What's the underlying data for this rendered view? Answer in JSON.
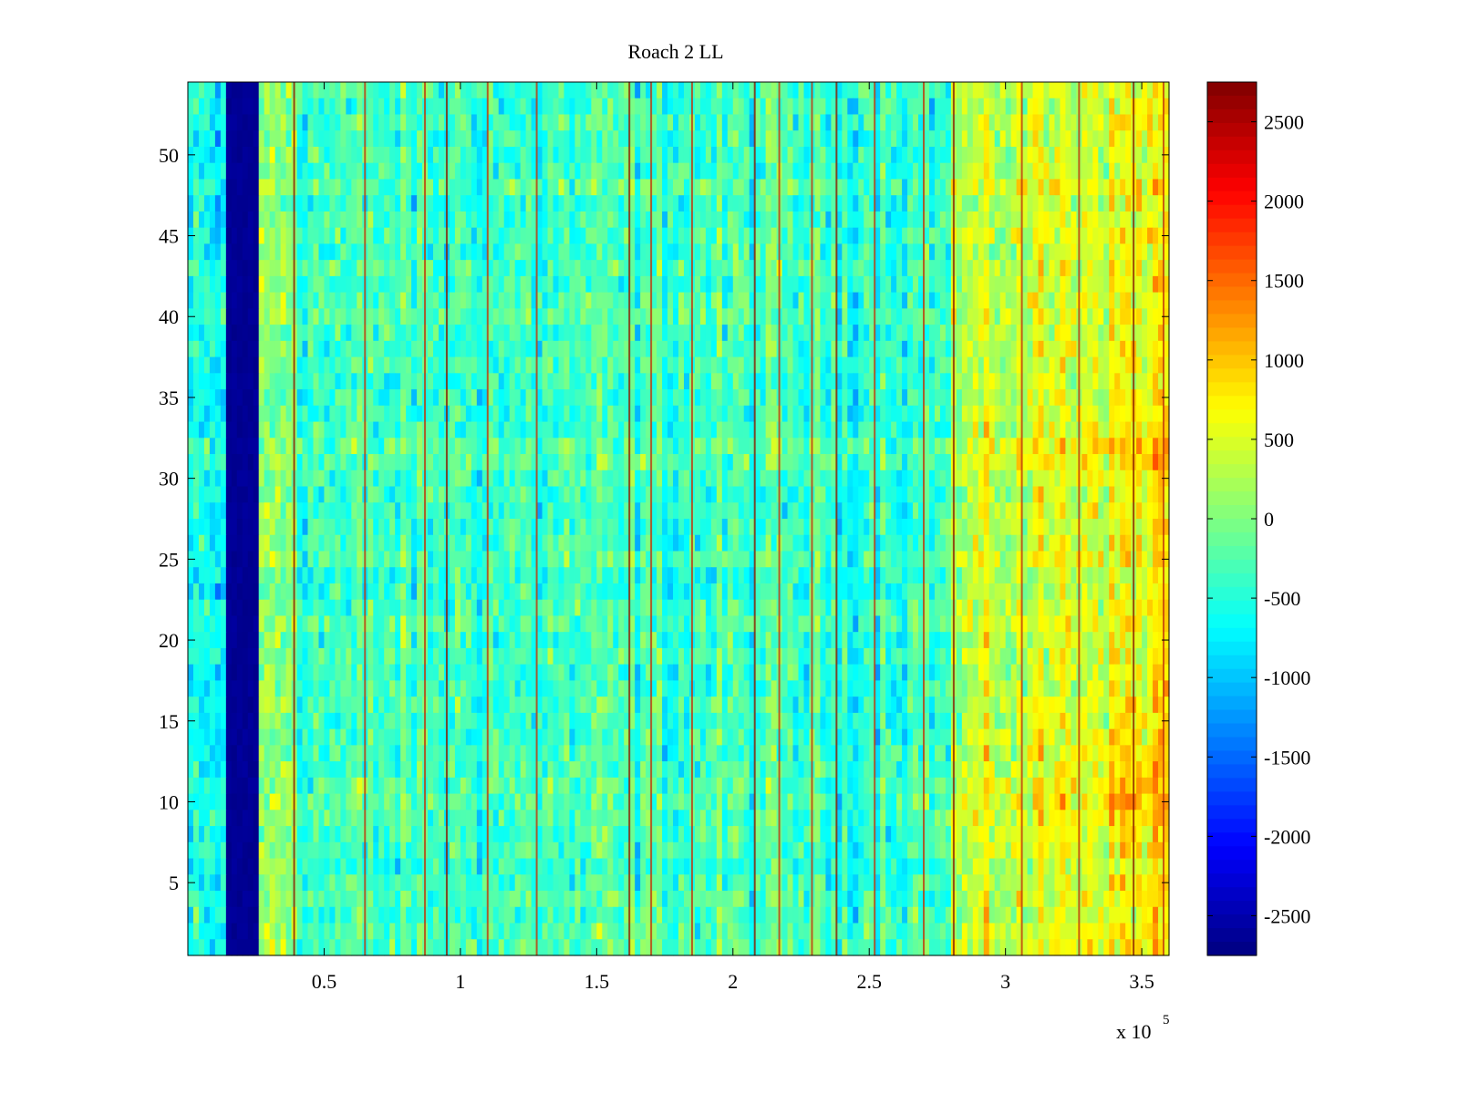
{
  "chart_data": {
    "type": "heatmap",
    "title": "Roach 2 LL",
    "xlabel": "",
    "ylabel": "",
    "x_multiplier_label": "x 10",
    "x_multiplier_exponent": "5",
    "xlim": [
      0,
      360000
    ],
    "ylim": [
      0.5,
      54.5
    ],
    "xticks": [
      50000,
      100000,
      150000,
      200000,
      250000,
      300000,
      350000
    ],
    "xtick_labels": [
      "0.5",
      "1",
      "1.5",
      "2",
      "2.5",
      "3",
      "3.5"
    ],
    "yticks": [
      5,
      10,
      15,
      20,
      25,
      30,
      35,
      40,
      45,
      50
    ],
    "ytick_labels": [
      "5",
      "10",
      "15",
      "20",
      "25",
      "30",
      "35",
      "40",
      "45",
      "50"
    ],
    "rows": 54,
    "colormap": "jet",
    "clim": [
      -2750,
      2750
    ],
    "colorbar_ticks": [
      2500,
      2000,
      1500,
      1000,
      500,
      0,
      -500,
      -1000,
      -1500,
      -2000,
      -2500
    ],
    "colorbar_tick_labels": [
      "2500",
      "2000",
      "1500",
      "1000",
      "500",
      "0",
      "-500",
      "-1000",
      "-1500",
      "-2000",
      "-2500"
    ],
    "features": {
      "dark_band_x": [
        14000,
        25000
      ],
      "dark_band_value": -2700,
      "background_value": -350,
      "right_region_start_x": 280000,
      "right_region_value": 700,
      "hot_rows_right": [
        24,
        44
      ],
      "vertical_lines_x": [
        39000,
        65000,
        87000,
        95000,
        110000,
        128000,
        162000,
        170000,
        185000,
        208000,
        217000,
        229000,
        238000,
        252000,
        270000,
        281000,
        306000,
        327000,
        347000,
        358000
      ]
    }
  }
}
